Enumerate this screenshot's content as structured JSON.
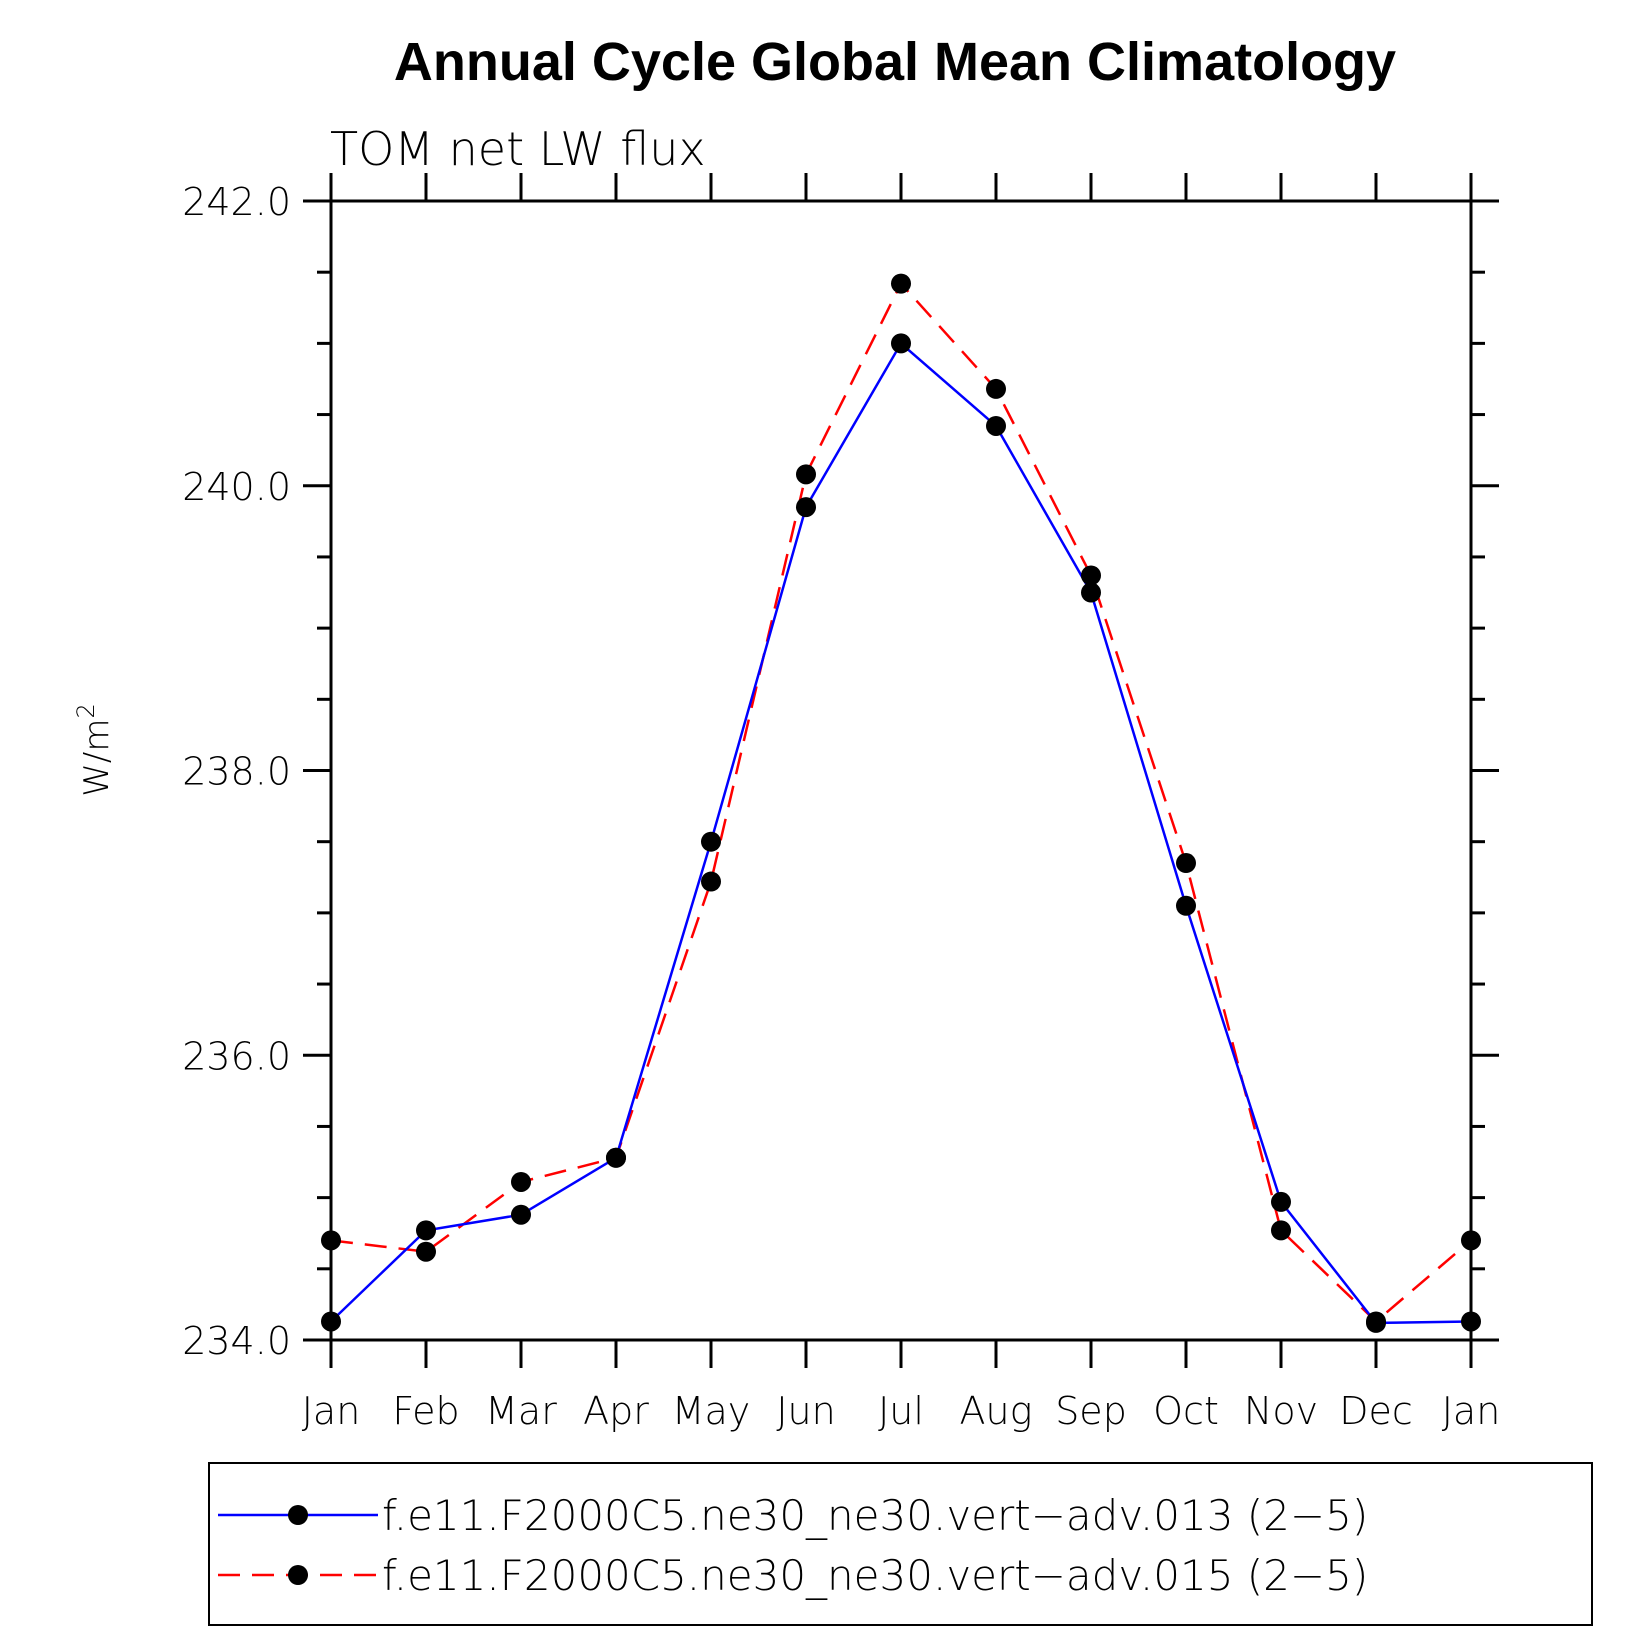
{
  "chart_data": {
    "type": "line",
    "title": "Annual Cycle Global Mean Climatology",
    "subtitle": "TOM net LW flux",
    "ylabel": "W/m",
    "ylabel_sup": "2",
    "xlabel": "",
    "categories": [
      "Jan",
      "Feb",
      "Mar",
      "Apr",
      "May",
      "Jun",
      "Jul",
      "Aug",
      "Sep",
      "Oct",
      "Nov",
      "Dec",
      "Jan"
    ],
    "ylim": [
      234.0,
      242.0
    ],
    "yticks": [
      234.0,
      236.0,
      238.0,
      240.0,
      242.0
    ],
    "ytick_labels": [
      "234.0",
      "236.0",
      "238.0",
      "240.0",
      "242.0"
    ],
    "y_minor_step": 0.5,
    "series": [
      {
        "name": "f.e11.F2000C5.ne30_ne30.vert−adv.013 (2−5)",
        "color": "#0000ff",
        "dash": "solid",
        "marker": "circle",
        "values": [
          234.13,
          234.77,
          234.88,
          235.28,
          237.5,
          239.85,
          241.0,
          240.42,
          239.25,
          237.05,
          234.97,
          234.12,
          234.13
        ]
      },
      {
        "name": "f.e11.F2000C5.ne30_ne30.vert−adv.015 (2−5)",
        "color": "#ff0000",
        "dash": "dashed",
        "marker": "circle",
        "values": [
          234.7,
          234.62,
          235.11,
          235.28,
          237.22,
          240.08,
          241.42,
          240.68,
          239.37,
          237.35,
          234.77,
          234.13,
          234.7
        ]
      }
    ],
    "legend_position": "bottom",
    "grid": false
  }
}
